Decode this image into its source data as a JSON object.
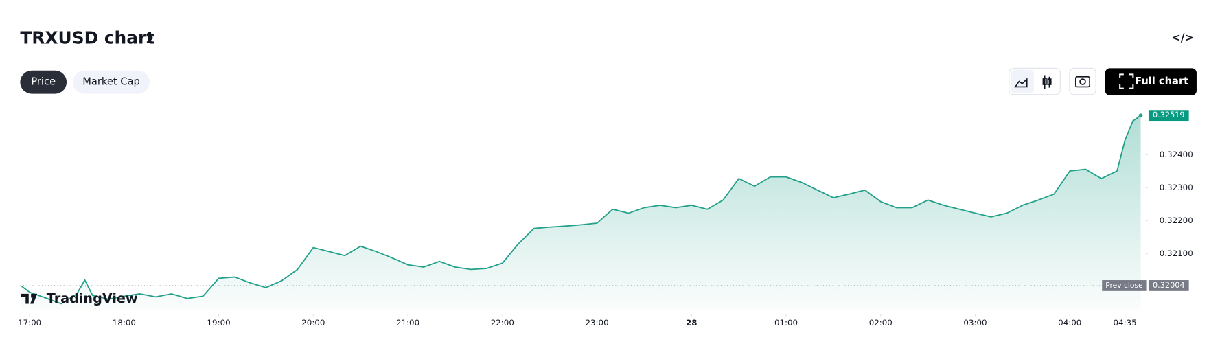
{
  "header": {
    "title": "TRXUSD chart"
  },
  "tabs": [
    "Price",
    "Market Cap"
  ],
  "toolbar": {
    "full_chart": "Full chart"
  },
  "branding": "TradingView",
  "chart_data": {
    "type": "area",
    "color": "#22a08a",
    "x": [
      "16:55",
      "17:00",
      "17:10",
      "17:20",
      "17:30",
      "17:35",
      "17:40",
      "17:50",
      "18:00",
      "18:10",
      "18:20",
      "18:30",
      "18:40",
      "18:50",
      "19:00",
      "19:10",
      "19:20",
      "19:30",
      "19:40",
      "19:50",
      "20:00",
      "20:10",
      "20:20",
      "20:30",
      "20:40",
      "20:50",
      "21:00",
      "21:10",
      "21:20",
      "21:30",
      "21:40",
      "21:50",
      "22:00",
      "22:10",
      "22:20",
      "22:30",
      "22:40",
      "22:50",
      "23:00",
      "23:10",
      "23:20",
      "23:30",
      "23:40",
      "23:50",
      "00:00",
      "00:10",
      "00:20",
      "00:30",
      "00:40",
      "00:50",
      "01:00",
      "01:10",
      "01:20",
      "01:30",
      "01:40",
      "01:50",
      "02:00",
      "02:10",
      "02:20",
      "02:30",
      "02:40",
      "02:50",
      "03:00",
      "03:10",
      "03:20",
      "03:30",
      "03:40",
      "03:50",
      "04:00",
      "04:10",
      "04:20",
      "04:30",
      "04:35",
      "04:40",
      "04:45"
    ],
    "values": [
      0.32002,
      0.31984,
      0.31967,
      0.31949,
      0.31979,
      0.32021,
      0.31974,
      0.31963,
      0.31972,
      0.31979,
      0.3197,
      0.31979,
      0.31965,
      0.31972,
      0.32026,
      0.3203,
      0.32012,
      0.31998,
      0.32019,
      0.32053,
      0.32119,
      0.32107,
      0.32095,
      0.32123,
      0.32107,
      0.32088,
      0.32067,
      0.3206,
      0.32077,
      0.3206,
      0.32053,
      0.32056,
      0.32072,
      0.3213,
      0.32177,
      0.32181,
      0.32184,
      0.32188,
      0.32193,
      0.32235,
      0.32223,
      0.3224,
      0.32247,
      0.3224,
      0.32247,
      0.32235,
      0.32263,
      0.32328,
      0.32305,
      0.32333,
      0.32333,
      0.32316,
      0.32293,
      0.3227,
      0.32281,
      0.32293,
      0.32258,
      0.3224,
      0.3224,
      0.32263,
      0.32247,
      0.32235,
      0.32223,
      0.32212,
      0.32223,
      0.32247,
      0.32263,
      0.32281,
      0.32351,
      0.32356,
      0.32328,
      0.32351,
      0.32444,
      0.32502,
      0.32519
    ],
    "xlim": [
      "16:54",
      "04:48"
    ],
    "xticks": [
      "17:00",
      "18:00",
      "19:00",
      "20:00",
      "21:00",
      "22:00",
      "23:00",
      {
        "value": "00:00",
        "label": "28"
      },
      "01:00",
      "02:00",
      "03:00",
      "04:00",
      "04:35"
    ],
    "ylim": [
      0.3193,
      0.3254
    ],
    "yticks": [
      {
        "value": 0.321,
        "label": "0.32100"
      },
      {
        "value": 0.322,
        "label": "0.32200"
      },
      {
        "value": 0.323,
        "label": "0.32300"
      },
      {
        "value": 0.324,
        "label": "0.32400"
      }
    ],
    "prev_close": 0.32004,
    "prev_close_label": "Prev close"
  }
}
